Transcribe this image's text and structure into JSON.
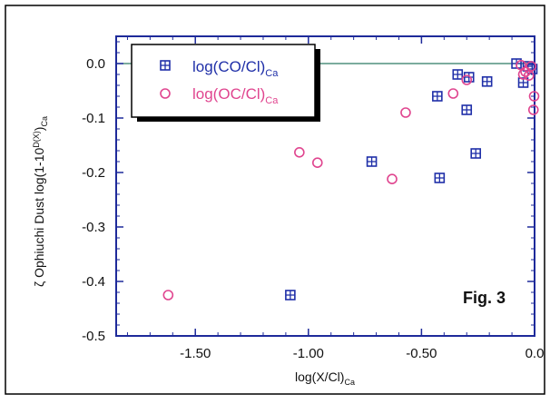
{
  "chart_data": {
    "type": "scatter",
    "figure_label": "Fig. 3",
    "xlabel_main": "log(X/Cl)",
    "xlabel_sub": "Ca",
    "ylabel_main": "ζ Ophiuchi Dust log(1-10",
    "ylabel_sup": "D(X)",
    "ylabel_close": ")",
    "ylabel_sub": "Ca",
    "xlim": [
      -1.85,
      0.0
    ],
    "ylim": [
      -0.5,
      0.05
    ],
    "x_ticks": [
      {
        "value": -1.5,
        "label": "-1.50"
      },
      {
        "value": -1.0,
        "label": "-1.00"
      },
      {
        "value": -0.5,
        "label": "-0.50"
      },
      {
        "value": 0.0,
        "label": "0.0"
      }
    ],
    "y_ticks": [
      {
        "value": 0.0,
        "label": "0.0"
      },
      {
        "value": -0.1,
        "label": "-0.1"
      },
      {
        "value": -0.2,
        "label": "-0.2"
      },
      {
        "value": -0.3,
        "label": "-0.3"
      },
      {
        "value": -0.4,
        "label": "-0.4"
      },
      {
        "value": -0.5,
        "label": "-0.5"
      }
    ],
    "legend_position": "top-left",
    "series": [
      {
        "name_main": "log(CO/Cl)",
        "name_sub": "Ca",
        "marker": "crossed-square",
        "color": "#1f2fa8",
        "points": [
          {
            "x": -1.08,
            "y": -0.425
          },
          {
            "x": -0.72,
            "y": -0.18
          },
          {
            "x": -0.42,
            "y": -0.21
          },
          {
            "x": -0.43,
            "y": -0.06
          },
          {
            "x": -0.34,
            "y": -0.02
          },
          {
            "x": -0.3,
            "y": -0.085
          },
          {
            "x": -0.29,
            "y": -0.025
          },
          {
            "x": -0.26,
            "y": -0.165
          },
          {
            "x": -0.21,
            "y": -0.033
          },
          {
            "x": -0.08,
            "y": 0.0
          },
          {
            "x": -0.05,
            "y": -0.035
          },
          {
            "x": -0.03,
            "y": -0.005
          },
          {
            "x": -0.01,
            "y": -0.01
          }
        ]
      },
      {
        "name_main": "log(OC/Cl)",
        "name_sub": "Ca",
        "marker": "open-circle",
        "color": "#e0458f",
        "points": [
          {
            "x": -1.62,
            "y": -0.425
          },
          {
            "x": -1.04,
            "y": -0.163
          },
          {
            "x": -0.96,
            "y": -0.182
          },
          {
            "x": -0.63,
            "y": -0.212
          },
          {
            "x": -0.57,
            "y": -0.09
          },
          {
            "x": -0.36,
            "y": -0.055
          },
          {
            "x": -0.3,
            "y": -0.03
          },
          {
            "x": -0.06,
            "y": -0.003
          },
          {
            "x": -0.05,
            "y": -0.02
          },
          {
            "x": -0.04,
            "y": -0.015
          },
          {
            "x": -0.025,
            "y": -0.022
          },
          {
            "x": -0.015,
            "y": -0.005
          },
          {
            "x": -0.005,
            "y": -0.085
          },
          {
            "x": -0.002,
            "y": -0.06
          }
        ]
      }
    ]
  },
  "colors": {
    "frame": "#1e2a9a",
    "axis_text": "#111111",
    "zero_line": "#2c7a63"
  }
}
